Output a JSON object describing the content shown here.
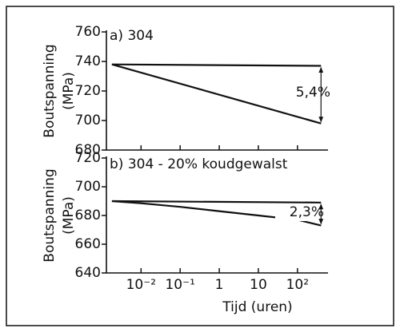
{
  "chart_data": [
    {
      "type": "line",
      "title": "a) 304",
      "ylabel": [
        "Boutspanning",
        "(MPa)"
      ],
      "log_x": true,
      "xlim": [
        0.0013,
        500
      ],
      "ylim": [
        680,
        760
      ],
      "yticks": [
        680,
        700,
        720,
        740,
        760
      ],
      "xticks": [
        {
          "value": 0.01,
          "label": "10⁻²"
        },
        {
          "value": 0.1,
          "label": "10⁻¹"
        },
        1,
        10,
        {
          "value": 100,
          "label": "10²"
        }
      ],
      "show_xtick_labels": false,
      "series": [
        {
          "color": "#111111",
          "x": [
            0.0018,
            400
          ],
          "values": [
            738,
            737
          ]
        },
        {
          "color": "#111111",
          "x": [
            0.0018,
            400
          ],
          "values": [
            738,
            698
          ]
        }
      ],
      "annotation": "5,4%"
    },
    {
      "type": "line",
      "title": "b) 304 - 20% koudgewalst",
      "ylabel": [
        "Boutspanning",
        "(MPa)"
      ],
      "xlabel": "Tijd (uren)",
      "log_x": true,
      "xlim": [
        0.0013,
        500
      ],
      "ylim": [
        640,
        720
      ],
      "yticks": [
        640,
        660,
        680,
        700,
        720
      ],
      "xticks": [
        {
          "value": 0.01,
          "label": "10⁻²"
        },
        {
          "value": 0.1,
          "label": "10⁻¹"
        },
        1,
        10,
        {
          "value": 100,
          "label": "10²"
        }
      ],
      "show_xtick_labels": true,
      "series": [
        {
          "color": "#111111",
          "x": [
            0.0018,
            400
          ],
          "values": [
            690,
            689
          ]
        },
        {
          "color": "#111111",
          "x": [
            0.0018,
            0.01,
            0.1,
            1,
            10,
            100,
            400
          ],
          "values": [
            690,
            688.5,
            686,
            683,
            680,
            677,
            673
          ]
        }
      ],
      "annotation": "2,3%"
    }
  ]
}
